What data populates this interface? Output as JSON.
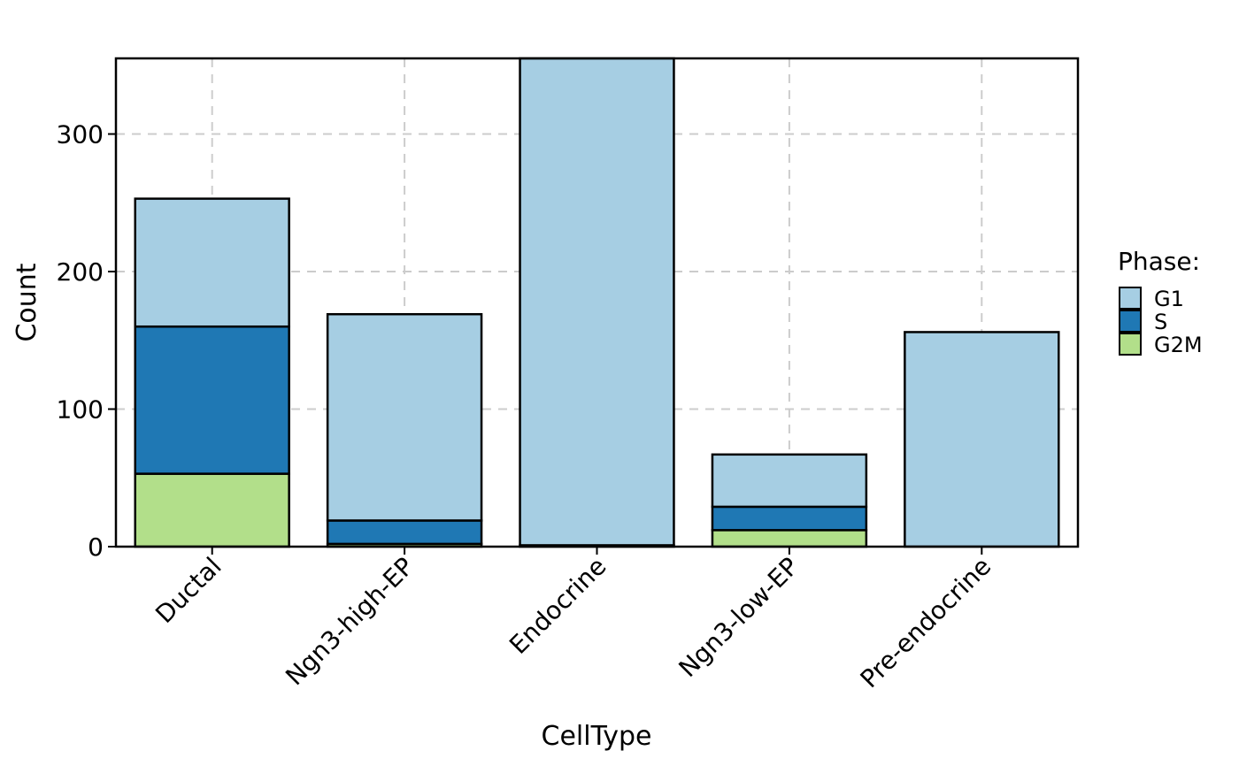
{
  "chart_data": {
    "type": "bar",
    "stacked": true,
    "xlabel": "CellType",
    "ylabel": "Count",
    "ylim": [
      0,
      355
    ],
    "yticks": [
      0,
      100,
      200,
      300
    ],
    "grid": true,
    "legend_position": "right",
    "legend_title": "Phase:",
    "categories": [
      "Ductal",
      "Ngn3-high-EP",
      "Endocrine",
      "Ngn3-low-EP",
      "Pre-endocrine"
    ],
    "series": [
      {
        "name": "G2M",
        "color": "#b2df8a",
        "values": [
          53,
          2,
          0,
          12,
          0
        ]
      },
      {
        "name": "S",
        "color": "#1f78b4",
        "values": [
          107,
          17,
          1,
          17,
          0
        ]
      },
      {
        "name": "G1",
        "color": "#a6cee3",
        "values": [
          93,
          150,
          354,
          38,
          156
        ]
      }
    ],
    "legend_order": [
      "G1",
      "S",
      "G2M"
    ]
  }
}
